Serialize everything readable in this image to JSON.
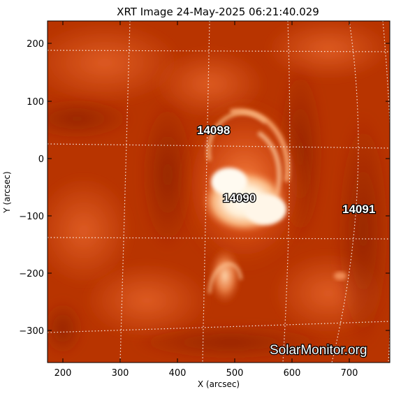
{
  "title": "XRT Image 24-May-2025 06:21:40.029",
  "axes": {
    "x_label": "X (arcsec)",
    "y_label": "Y (arcsec)",
    "x_ticks": [
      "200",
      "300",
      "400",
      "500",
      "600",
      "700"
    ],
    "y_ticks": [
      "200",
      "100",
      "0",
      "−100",
      "−200",
      "−300"
    ]
  },
  "regions": [
    {
      "id": "14098",
      "label": "14098"
    },
    {
      "id": "14090",
      "label": "14090"
    },
    {
      "id": "14091",
      "label": "14091"
    }
  ],
  "watermark": "SolarMonitor.org",
  "colors": {
    "background": "#ffffff",
    "image_base": "#b33000",
    "image_bright": "#fff6e6",
    "grid": "#ffffff"
  }
}
